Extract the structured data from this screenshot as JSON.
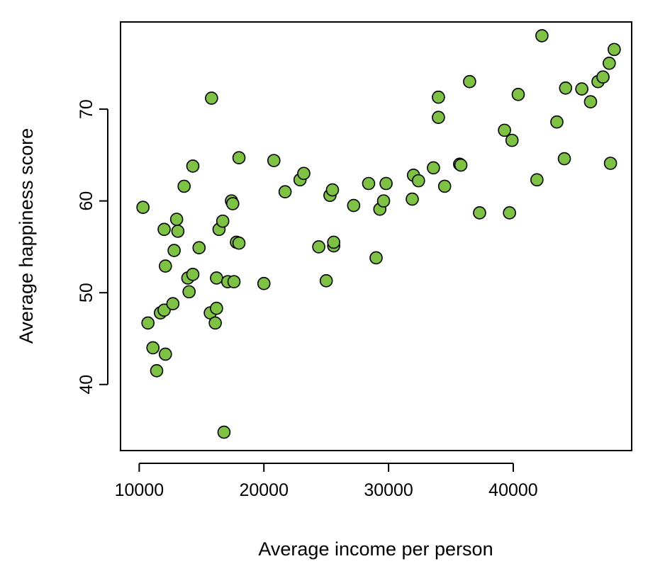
{
  "chart_data": {
    "type": "scatter",
    "title": "",
    "xlabel": "Average income per person",
    "ylabel": "Average happiness score",
    "xlim": [
      8500,
      49500
    ],
    "ylim": [
      32.8,
      79.5
    ],
    "xticks": [
      10000,
      20000,
      30000,
      40000
    ],
    "xtick_labels": [
      "10000",
      "20000",
      "30000",
      "40000"
    ],
    "yticks": [
      40,
      50,
      60,
      70
    ],
    "ytick_labels": [
      "40",
      "50",
      "60",
      "70"
    ],
    "grid": false,
    "legend": "none",
    "marker_fill": "#7dc242",
    "marker_edge": "#000000",
    "series": [
      {
        "points": [
          [
            10300,
            59.3
          ],
          [
            10700,
            46.7
          ],
          [
            11100,
            44.0
          ],
          [
            11400,
            41.5
          ],
          [
            11700,
            47.8
          ],
          [
            12000,
            48.1
          ],
          [
            12000,
            56.9
          ],
          [
            12100,
            43.3
          ],
          [
            12100,
            52.9
          ],
          [
            12700,
            48.8
          ],
          [
            12800,
            54.6
          ],
          [
            13000,
            58.0
          ],
          [
            13100,
            56.7
          ],
          [
            13600,
            61.6
          ],
          [
            13900,
            51.6
          ],
          [
            14000,
            50.1
          ],
          [
            14300,
            52.0
          ],
          [
            14300,
            63.8
          ],
          [
            14800,
            54.9
          ],
          [
            15700,
            47.8
          ],
          [
            15800,
            71.2
          ],
          [
            16100,
            46.7
          ],
          [
            16200,
            48.3
          ],
          [
            16200,
            51.6
          ],
          [
            16400,
            56.9
          ],
          [
            16700,
            57.8
          ],
          [
            16800,
            34.8
          ],
          [
            17100,
            51.2
          ],
          [
            17400,
            60.0
          ],
          [
            17500,
            59.7
          ],
          [
            17600,
            51.2
          ],
          [
            17800,
            55.5
          ],
          [
            18000,
            55.4
          ],
          [
            18000,
            64.7
          ],
          [
            20000,
            51.0
          ],
          [
            20800,
            64.4
          ],
          [
            21700,
            61.0
          ],
          [
            22900,
            62.3
          ],
          [
            23200,
            63.0
          ],
          [
            24400,
            55.0
          ],
          [
            25000,
            51.3
          ],
          [
            25300,
            60.6
          ],
          [
            25500,
            61.2
          ],
          [
            25600,
            55.1
          ],
          [
            25600,
            55.5
          ],
          [
            27200,
            59.5
          ],
          [
            28400,
            61.9
          ],
          [
            29000,
            53.8
          ],
          [
            29300,
            59.1
          ],
          [
            29600,
            60.0
          ],
          [
            29800,
            61.9
          ],
          [
            31900,
            60.2
          ],
          [
            32000,
            62.8
          ],
          [
            32400,
            62.2
          ],
          [
            33600,
            63.6
          ],
          [
            34000,
            71.3
          ],
          [
            34000,
            69.1
          ],
          [
            34500,
            61.6
          ],
          [
            35700,
            64.0
          ],
          [
            35800,
            63.9
          ],
          [
            36500,
            73.0
          ],
          [
            37300,
            58.7
          ],
          [
            39300,
            67.7
          ],
          [
            39700,
            58.7
          ],
          [
            39900,
            66.6
          ],
          [
            40400,
            71.6
          ],
          [
            41900,
            62.3
          ],
          [
            42300,
            78.0
          ],
          [
            43500,
            68.6
          ],
          [
            44100,
            64.6
          ],
          [
            44200,
            72.3
          ],
          [
            45500,
            72.2
          ],
          [
            46200,
            70.8
          ],
          [
            46800,
            73.0
          ],
          [
            47200,
            73.5
          ],
          [
            47700,
            75.0
          ],
          [
            47800,
            64.1
          ],
          [
            48100,
            76.5
          ]
        ]
      }
    ]
  }
}
